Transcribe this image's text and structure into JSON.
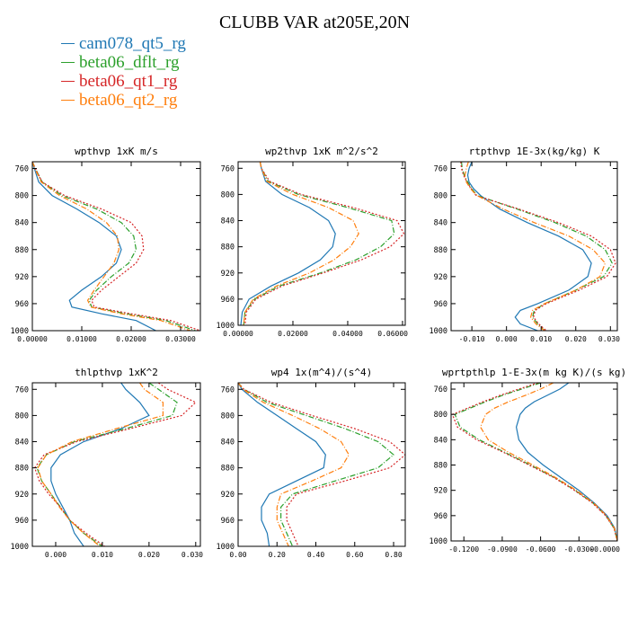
{
  "title": "CLUBB VAR at205E,20N",
  "legend": [
    {
      "name": "cam078_qt5_rg",
      "color": "#1f78b4",
      "dash": "solid"
    },
    {
      "name": "beta06_dflt_rg",
      "color": "#2ca02c",
      "dash": "dashdot"
    },
    {
      "name": "beta06_qt1_rg",
      "color": "#d62728",
      "dash": "dotted"
    },
    {
      "name": "beta06_qt2_rg",
      "color": "#ff7f0e",
      "dash": "dashdot"
    }
  ],
  "chart_data": [
    {
      "type": "line",
      "title": "wpthvp  1xK m/s",
      "xlim": [
        0,
        0.034
      ],
      "ylim": [
        1000,
        750
      ],
      "ylabel": "",
      "xlabel": "",
      "xticks": [
        "0.00000",
        "0.01000",
        "0.02000",
        "0.03000"
      ],
      "xtick_values": [
        0,
        0.01,
        0.02,
        0.03
      ],
      "yticks": [
        "760",
        "800",
        "840",
        "880",
        "920",
        "960",
        "1000"
      ],
      "ytick_values": [
        760,
        800,
        840,
        880,
        920,
        960,
        1000
      ],
      "y": [
        750,
        760,
        780,
        800,
        820,
        840,
        860,
        880,
        900,
        920,
        940,
        955,
        965,
        975,
        985,
        1000
      ],
      "series": [
        {
          "name": "cam078_qt5_rg",
          "values": [
            0.0,
            0.0004,
            0.0013,
            0.004,
            0.009,
            0.0135,
            0.017,
            0.018,
            0.017,
            0.014,
            0.01,
            0.0075,
            0.008,
            0.014,
            0.021,
            0.025
          ]
        },
        {
          "name": "beta06_dflt_rg",
          "values": [
            0.0,
            0.0006,
            0.002,
            0.006,
            0.013,
            0.018,
            0.0205,
            0.021,
            0.0195,
            0.016,
            0.013,
            0.0115,
            0.012,
            0.019,
            0.027,
            0.033
          ]
        },
        {
          "name": "beta06_qt1_rg",
          "values": [
            0.0,
            0.0006,
            0.002,
            0.0065,
            0.014,
            0.02,
            0.0222,
            0.0225,
            0.021,
            0.0175,
            0.014,
            0.012,
            0.0125,
            0.02,
            0.028,
            0.034
          ]
        },
        {
          "name": "beta06_qt2_rg",
          "values": [
            0.0,
            0.0005,
            0.0018,
            0.0055,
            0.011,
            0.015,
            0.0172,
            0.0175,
            0.0165,
            0.0145,
            0.0125,
            0.0112,
            0.0118,
            0.018,
            0.026,
            0.032
          ]
        }
      ]
    },
    {
      "type": "line",
      "title": "wp2thvp  1xK m^2/s^2",
      "xlim": [
        0,
        0.061
      ],
      "ylim": [
        1000,
        750
      ],
      "ylabel": "",
      "xlabel": "",
      "xticks": [
        "0.00000",
        "0.02000",
        "0.04000",
        "0.06000"
      ],
      "xtick_values": [
        0,
        0.02,
        0.04,
        0.06
      ],
      "yticks": [
        "760",
        "800",
        "840",
        "880",
        "920",
        "960",
        "1000"
      ],
      "ytick_values": [
        760,
        800,
        840,
        880,
        920,
        960,
        1000
      ],
      "y": [
        750,
        760,
        780,
        800,
        820,
        840,
        860,
        880,
        900,
        920,
        940,
        960,
        980,
        1000
      ],
      "series": [
        {
          "name": "cam078_qt5_rg",
          "values": [
            0.008,
            0.0085,
            0.01,
            0.016,
            0.026,
            0.033,
            0.0355,
            0.0345,
            0.03,
            0.022,
            0.012,
            0.004,
            0.0015,
            0.001
          ]
        },
        {
          "name": "beta06_dflt_rg",
          "values": [
            0.008,
            0.0085,
            0.011,
            0.022,
            0.04,
            0.056,
            0.057,
            0.052,
            0.043,
            0.03,
            0.015,
            0.006,
            0.0025,
            0.002
          ]
        },
        {
          "name": "beta06_qt1_rg",
          "values": [
            0.008,
            0.0085,
            0.0115,
            0.023,
            0.042,
            0.058,
            0.0605,
            0.0555,
            0.045,
            0.031,
            0.016,
            0.0065,
            0.003,
            0.0025
          ]
        },
        {
          "name": "beta06_qt2_rg",
          "values": [
            0.008,
            0.0085,
            0.0105,
            0.02,
            0.033,
            0.042,
            0.044,
            0.041,
            0.035,
            0.026,
            0.014,
            0.0055,
            0.0025,
            0.002
          ]
        }
      ]
    },
    {
      "type": "line",
      "title": "rtpthvp  1E-3x(kg/kg) K",
      "xlim": [
        -0.016,
        0.032
      ],
      "ylim": [
        1000,
        750
      ],
      "ylabel": "",
      "xlabel": "",
      "xticks": [
        "-0.010",
        "0.000",
        "0.010",
        "0.020",
        "0.030"
      ],
      "xtick_values": [
        -0.01,
        0,
        0.01,
        0.02,
        0.03
      ],
      "yticks": [
        "760",
        "800",
        "840",
        "880",
        "920",
        "960",
        "1000"
      ],
      "ytick_values": [
        760,
        800,
        840,
        880,
        920,
        960,
        1000
      ],
      "y": [
        750,
        760,
        770,
        780,
        790,
        800,
        820,
        840,
        860,
        880,
        900,
        920,
        940,
        960,
        970,
        980,
        990,
        1000
      ],
      "series": [
        {
          "name": "cam078_qt5_rg",
          "values": [
            -0.01,
            -0.0108,
            -0.0112,
            -0.0108,
            -0.0095,
            -0.0075,
            -0.002,
            0.006,
            0.015,
            0.022,
            0.0245,
            0.0235,
            0.018,
            0.009,
            0.004,
            0.0025,
            0.004,
            0.009
          ]
        },
        {
          "name": "beta06_dflt_rg",
          "values": [
            -0.013,
            -0.0128,
            -0.0122,
            -0.0112,
            -0.01,
            -0.0085,
            0.003,
            0.014,
            0.023,
            0.0285,
            0.0305,
            0.028,
            0.02,
            0.011,
            0.008,
            0.0075,
            0.009,
            0.011
          ]
        },
        {
          "name": "beta06_qt1_rg",
          "values": [
            -0.0132,
            -0.013,
            -0.0124,
            -0.0114,
            -0.0102,
            -0.0088,
            0.0035,
            0.015,
            0.0245,
            0.03,
            0.0315,
            0.029,
            0.021,
            0.0115,
            0.0083,
            0.0078,
            0.0093,
            0.0115
          ]
        },
        {
          "name": "beta06_qt2_rg",
          "values": [
            -0.011,
            -0.0116,
            -0.012,
            -0.0116,
            -0.0104,
            -0.0085,
            -0.001,
            0.008,
            0.018,
            0.025,
            0.0285,
            0.027,
            0.02,
            0.011,
            0.0075,
            0.007,
            0.0085,
            0.011
          ]
        }
      ]
    },
    {
      "type": "line",
      "title": "thlpthvp  1xK^2",
      "xlim": [
        -0.005,
        0.031
      ],
      "ylim": [
        1000,
        750
      ],
      "ylabel": "",
      "xlabel": "",
      "xticks": [
        "0.000",
        "0.010",
        "0.020",
        "0.030"
      ],
      "xtick_values": [
        0,
        0.01,
        0.02,
        0.03
      ],
      "yticks": [
        "760",
        "800",
        "840",
        "880",
        "920",
        "960",
        "1000"
      ],
      "ytick_values": [
        760,
        800,
        840,
        880,
        920,
        960,
        1000
      ],
      "y": [
        750,
        760,
        780,
        800,
        820,
        840,
        860,
        880,
        900,
        920,
        940,
        960,
        980,
        1000
      ],
      "series": [
        {
          "name": "cam078_qt5_rg",
          "values": [
            0.014,
            0.015,
            0.018,
            0.02,
            0.014,
            0.006,
            0.001,
            -0.001,
            -0.001,
            0.0,
            0.0015,
            0.003,
            0.004,
            0.006
          ]
        },
        {
          "name": "beta06_dflt_rg",
          "values": [
            0.02,
            0.022,
            0.026,
            0.025,
            0.015,
            0.004,
            -0.002,
            -0.004,
            -0.003,
            -0.001,
            0.001,
            0.003,
            0.006,
            0.01
          ]
        },
        {
          "name": "beta06_qt1_rg",
          "values": [
            0.022,
            0.024,
            0.03,
            0.027,
            0.016,
            0.0045,
            -0.0025,
            -0.0045,
            -0.0035,
            -0.0015,
            0.001,
            0.003,
            0.0065,
            0.0105
          ]
        },
        {
          "name": "beta06_qt2_rg",
          "values": [
            0.018,
            0.019,
            0.023,
            0.023,
            0.013,
            0.0035,
            -0.002,
            -0.0038,
            -0.003,
            -0.001,
            0.0008,
            0.003,
            0.006,
            0.0095
          ]
        }
      ]
    },
    {
      "type": "line",
      "title": "wp4  1x(m^4)/(s^4)",
      "xlim": [
        0,
        0.86
      ],
      "ylim": [
        1000,
        750
      ],
      "ylabel": "",
      "xlabel": "",
      "xticks": [
        "0.00",
        "0.20",
        "0.40",
        "0.60",
        "0.80"
      ],
      "xtick_values": [
        0,
        0.2,
        0.4,
        0.6,
        0.8
      ],
      "yticks": [
        "760",
        "800",
        "840",
        "880",
        "920",
        "960",
        "1000"
      ],
      "ytick_values": [
        760,
        800,
        840,
        880,
        920,
        960,
        1000
      ],
      "y": [
        750,
        760,
        780,
        800,
        820,
        840,
        860,
        880,
        900,
        920,
        940,
        960,
        980,
        1000
      ],
      "series": [
        {
          "name": "cam078_qt5_rg",
          "values": [
            0.0,
            0.02,
            0.1,
            0.2,
            0.3,
            0.4,
            0.45,
            0.44,
            0.3,
            0.16,
            0.12,
            0.12,
            0.15,
            0.16
          ]
        },
        {
          "name": "beta06_dflt_rg",
          "values": [
            0.0,
            0.03,
            0.15,
            0.35,
            0.55,
            0.72,
            0.8,
            0.72,
            0.5,
            0.28,
            0.22,
            0.22,
            0.25,
            0.28
          ]
        },
        {
          "name": "beta06_qt1_rg",
          "values": [
            0.0,
            0.03,
            0.17,
            0.38,
            0.6,
            0.78,
            0.86,
            0.78,
            0.55,
            0.3,
            0.25,
            0.25,
            0.28,
            0.31
          ]
        },
        {
          "name": "beta06_qt2_rg",
          "values": [
            0.0,
            0.025,
            0.13,
            0.28,
            0.42,
            0.53,
            0.57,
            0.53,
            0.38,
            0.22,
            0.2,
            0.2,
            0.23,
            0.26
          ]
        }
      ]
    },
    {
      "type": "line",
      "title": "wprtpthlp  1-E-3x(m kg K)/(s kg)",
      "xlim": [
        -0.13,
        0
      ],
      "ylim": [
        1000,
        750
      ],
      "ylabel": "",
      "xlabel": "",
      "xticks": [
        "-0.1200",
        "-0.0900",
        "-0.0600",
        "-0.0300",
        "-0.0000"
      ],
      "xtick_values": [
        -0.12,
        -0.09,
        -0.06,
        -0.03,
        0
      ],
      "yticks": [
        "760",
        "800",
        "840",
        "880",
        "920",
        "960",
        "1000"
      ],
      "ytick_values": [
        760,
        800,
        840,
        880,
        920,
        960,
        1000
      ],
      "y": [
        750,
        760,
        770,
        780,
        790,
        800,
        820,
        840,
        860,
        880,
        900,
        920,
        940,
        960,
        980,
        1000
      ],
      "series": [
        {
          "name": "cam078_qt5_rg",
          "values": [
            -0.038,
            -0.045,
            -0.055,
            -0.065,
            -0.072,
            -0.076,
            -0.079,
            -0.077,
            -0.07,
            -0.058,
            -0.044,
            -0.03,
            -0.018,
            -0.008,
            -0.002,
            0.0
          ]
        },
        {
          "name": "beta06_dflt_rg",
          "values": [
            -0.06,
            -0.075,
            -0.09,
            -0.103,
            -0.115,
            -0.127,
            -0.123,
            -0.108,
            -0.088,
            -0.068,
            -0.049,
            -0.033,
            -0.019,
            -0.009,
            -0.0025,
            0.0
          ]
        },
        {
          "name": "beta06_qt1_rg",
          "values": [
            -0.062,
            -0.077,
            -0.092,
            -0.105,
            -0.117,
            -0.129,
            -0.125,
            -0.11,
            -0.089,
            -0.069,
            -0.0495,
            -0.0335,
            -0.0195,
            -0.0092,
            -0.0026,
            0.0
          ]
        },
        {
          "name": "beta06_qt2_rg",
          "values": [
            -0.05,
            -0.06,
            -0.072,
            -0.085,
            -0.096,
            -0.103,
            -0.107,
            -0.101,
            -0.085,
            -0.066,
            -0.048,
            -0.032,
            -0.0185,
            -0.0085,
            -0.0022,
            0.0
          ]
        }
      ]
    }
  ]
}
